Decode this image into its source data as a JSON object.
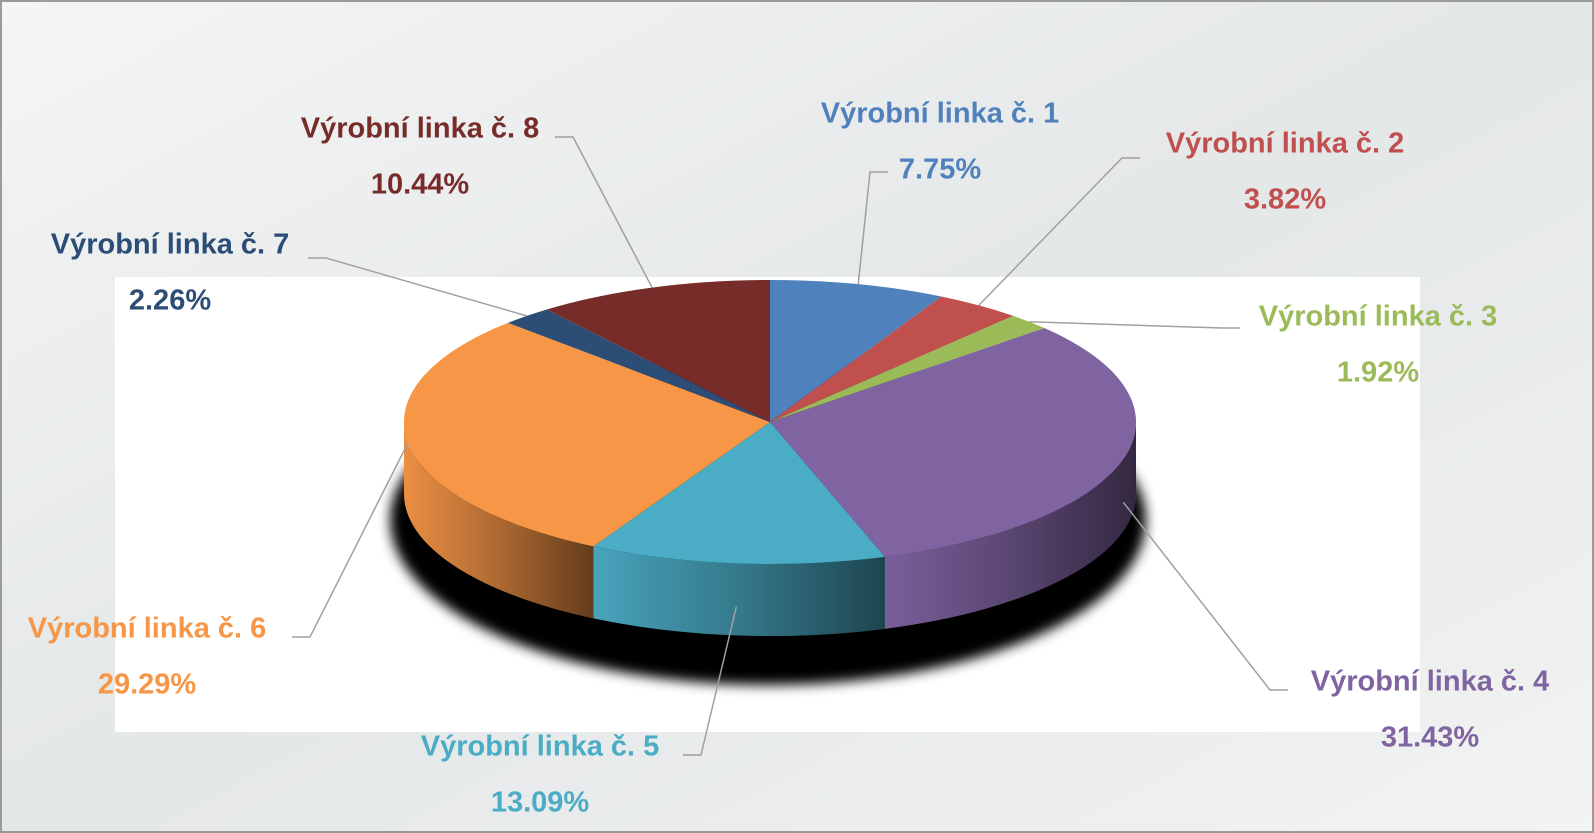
{
  "chart_data": {
    "type": "pie3d",
    "categories": [
      "Výrobní linka č. 1",
      "Výrobní linka č. 2",
      "Výrobní linka č. 3",
      "Výrobní linka č. 4",
      "Výrobní linka č. 5",
      "Výrobní linka č. 6",
      "Výrobní linka č. 7",
      "Výrobní linka č. 8"
    ],
    "values": [
      7.75,
      3.82,
      1.92,
      31.43,
      13.09,
      29.29,
      2.26,
      10.44
    ],
    "value_labels": [
      "7.75%",
      "3.82%",
      "1.92%",
      "31.43%",
      "13.09%",
      "29.29%",
      "2.26%",
      "10.44%"
    ],
    "colors": [
      "#4f81bd",
      "#c0504d",
      "#9bbb59",
      "#8064a2",
      "#4bacc6",
      "#f79646",
      "#2c4d75",
      "#772c2a"
    ]
  }
}
